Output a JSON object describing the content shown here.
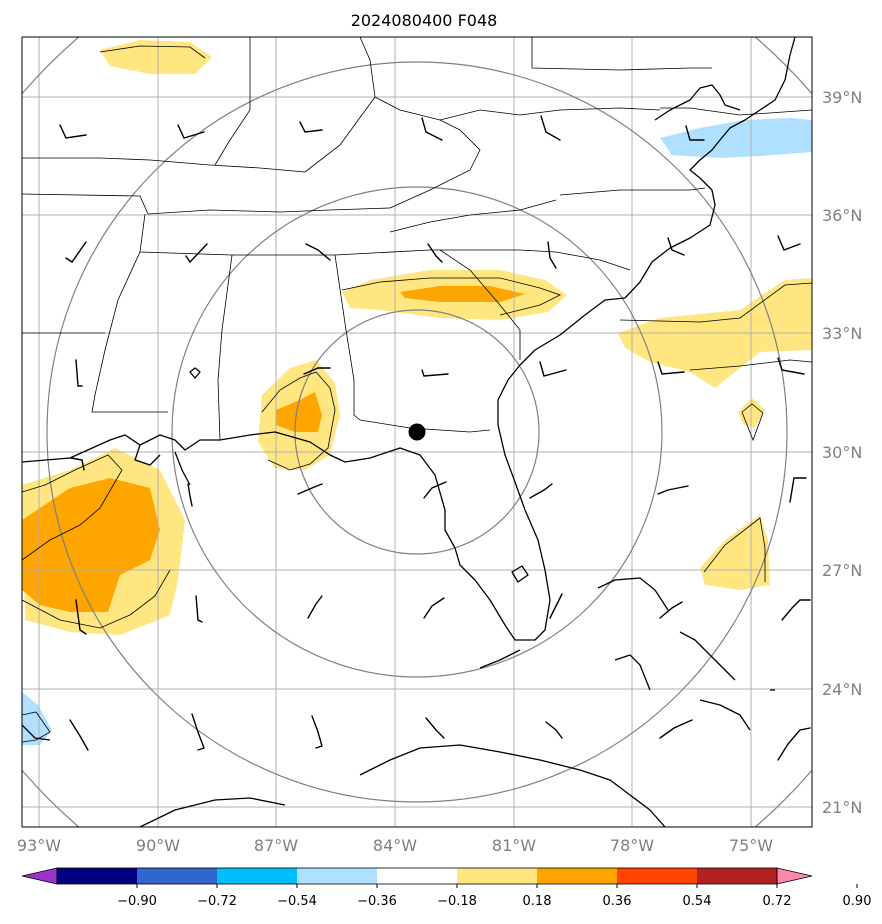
{
  "title": "2024080400 F048",
  "lat_labels": [
    "39°N",
    "36°N",
    "33°N",
    "30°N",
    "27°N",
    "24°N",
    "21°N"
  ],
  "lon_labels": [
    "93°W",
    "90°W",
    "87°W",
    "84°W",
    "81°W",
    "78°W",
    "75°W"
  ],
  "colorbar": {
    "labels": [
      "−0.90",
      "−0.72",
      "−0.54",
      "−0.36",
      "−0.18",
      "0.18",
      "0.36",
      "0.54",
      "0.72",
      "0.90"
    ],
    "colors": [
      "#9933cc",
      "#000080",
      "#3366cc",
      "#00bfff",
      "#b0e0ff",
      "#ffffff",
      "#ffe680",
      "#ffa500",
      "#ff4500",
      "#b22222",
      "#ff88aa"
    ]
  },
  "fill_colors": {
    "light_yellow": "#ffe680",
    "orange": "#ffa500",
    "light_blue": "#b0e0ff"
  },
  "center_marker": {
    "lat": 30.5,
    "lon": -83.6
  }
}
